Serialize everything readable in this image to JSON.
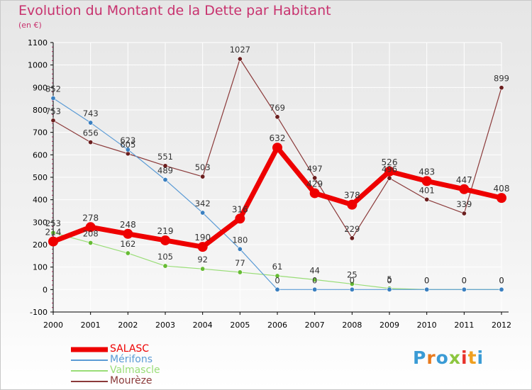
{
  "title": "Evolution du Montant de la Dette par Habitant",
  "subtitle": "(en €)",
  "logo": {
    "text": "Proxiti",
    "colors": [
      "#3a9bd5",
      "#e87a1e",
      "#3a9bd5",
      "#8cc63f",
      "#e8322b",
      "#f0a020",
      "#3a9bd5"
    ]
  },
  "colors": {
    "title": "#c8326e",
    "grid": "#ffffff",
    "axis": "#000000",
    "tick_text": "#000000",
    "value_label": "#333333"
  },
  "chart_data": {
    "type": "line",
    "title": "Evolution du Montant de la Dette par Habitant",
    "subtitle": "(en €)",
    "xlabel": "",
    "ylabel": "",
    "x": [
      2000,
      2001,
      2002,
      2003,
      2004,
      2005,
      2006,
      2007,
      2008,
      2009,
      2010,
      2011,
      2012
    ],
    "ylim": [
      -100,
      1100
    ],
    "yticks": [
      -100,
      0,
      100,
      200,
      300,
      400,
      500,
      600,
      700,
      800,
      900,
      1000,
      1100
    ],
    "grid": true,
    "legend_position": "bottom-left",
    "series": [
      {
        "name": "SALASC",
        "color": "#ee0000",
        "marker_color": "#ee0000",
        "width": 7,
        "values": [
          214,
          278,
          248,
          219,
          190,
          316,
          632,
          429,
          378,
          526,
          483,
          447,
          408
        ],
        "labels": [
          "214",
          "278",
          "248",
          "219",
          "190",
          "316",
          "632",
          "429",
          "378",
          "526",
          "483",
          "447",
          "408"
        ]
      },
      {
        "name": "Mérifons",
        "color": "#5b9bd5",
        "marker_color": "#3a7fc0",
        "width": 1.2,
        "values": [
          852,
          743,
          623,
          489,
          342,
          180,
          0,
          0,
          0,
          0,
          0,
          0,
          0
        ],
        "labels": [
          "852",
          "743",
          "623",
          "489",
          "342",
          "180",
          "0",
          "0",
          "0",
          "0",
          "0",
          "0",
          "0"
        ]
      },
      {
        "name": "Valmascle",
        "color": "#99dd77",
        "marker_color": "#66bb33",
        "width": 1.2,
        "values": [
          253,
          208,
          162,
          105,
          92,
          77,
          61,
          44,
          25,
          5,
          0,
          0,
          0
        ],
        "labels": [
          "253",
          "208",
          "162",
          "105",
          "92",
          "77",
          "61",
          "44",
          "25",
          "5",
          "0",
          "0",
          "0"
        ]
      },
      {
        "name": "Mourèze",
        "color": "#8b3a3a",
        "marker_color": "#6b1f1f",
        "width": 1.2,
        "values": [
          753,
          656,
          605,
          551,
          503,
          1027,
          769,
          497,
          229,
          496,
          401,
          339,
          899
        ],
        "labels": [
          "753",
          "656",
          "605",
          "551",
          "503",
          "1027",
          "769",
          "497",
          "229",
          "496",
          "401",
          "339",
          "899"
        ]
      }
    ]
  }
}
